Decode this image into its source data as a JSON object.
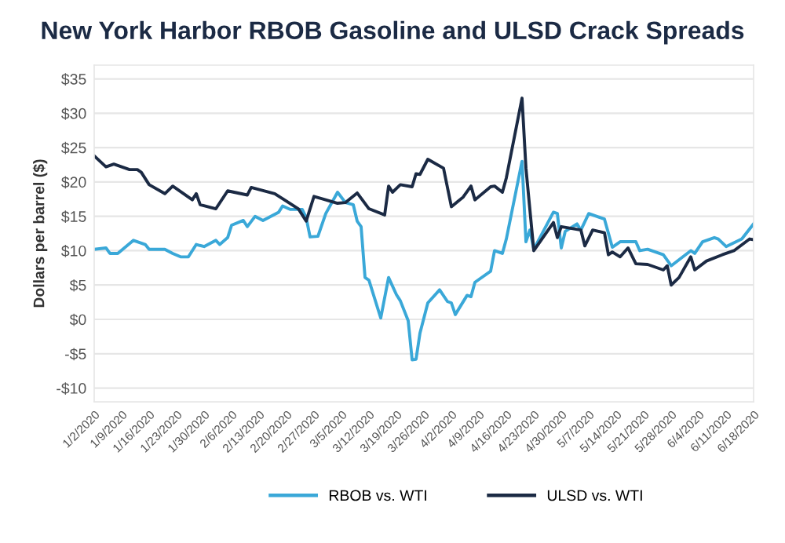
{
  "chart_data": {
    "type": "line",
    "title": "New York Harbor RBOB Gasoline and ULSD Crack Spreads",
    "ylabel": "Dollars per barrel ($)",
    "xlim": [
      "2020-01-02",
      "2020-06-18"
    ],
    "xticks": [
      {
        "value": "2020-01-02",
        "label": "1/2/2020"
      },
      {
        "value": "2020-01-09",
        "label": "1/9/2020"
      },
      {
        "value": "2020-01-16",
        "label": "1/16/2020"
      },
      {
        "value": "2020-01-23",
        "label": "1/23/2020"
      },
      {
        "value": "2020-01-30",
        "label": "1/30/2020"
      },
      {
        "value": "2020-02-06",
        "label": "2/6/2020"
      },
      {
        "value": "2020-02-13",
        "label": "2/13/2020"
      },
      {
        "value": "2020-02-20",
        "label": "2/20/2020"
      },
      {
        "value": "2020-02-27",
        "label": "2/27/2020"
      },
      {
        "value": "2020-03-05",
        "label": "3/5/2020"
      },
      {
        "value": "2020-03-12",
        "label": "3/12/2020"
      },
      {
        "value": "2020-03-19",
        "label": "3/19/2020"
      },
      {
        "value": "2020-03-26",
        "label": "3/26/2020"
      },
      {
        "value": "2020-04-02",
        "label": "4/2/2020"
      },
      {
        "value": "2020-04-09",
        "label": "4/9/2020"
      },
      {
        "value": "2020-04-16",
        "label": "4/16/2020"
      },
      {
        "value": "2020-04-23",
        "label": "4/23/2020"
      },
      {
        "value": "2020-04-30",
        "label": "4/30/2020"
      },
      {
        "value": "2020-05-07",
        "label": "5/7/2020"
      },
      {
        "value": "2020-05-14",
        "label": "5/14/2020"
      },
      {
        "value": "2020-05-21",
        "label": "5/21/2020"
      },
      {
        "value": "2020-05-28",
        "label": "5/28/2020"
      },
      {
        "value": "2020-06-04",
        "label": "6/4/2020"
      },
      {
        "value": "2020-06-11",
        "label": "6/11/2020"
      },
      {
        "value": "2020-06-18",
        "label": "6/18/2020"
      }
    ],
    "ylim": [
      -12,
      37
    ],
    "yticks": [
      {
        "value": -10,
        "label": "-$10"
      },
      {
        "value": -5,
        "label": "-$5"
      },
      {
        "value": 0,
        "label": "$0"
      },
      {
        "value": 5,
        "label": "$5"
      },
      {
        "value": 10,
        "label": "$10"
      },
      {
        "value": 15,
        "label": "$15"
      },
      {
        "value": 20,
        "label": "$20"
      },
      {
        "value": 25,
        "label": "$25"
      },
      {
        "value": 30,
        "label": "$30"
      },
      {
        "value": 35,
        "label": "$35"
      }
    ],
    "grid": "y",
    "legend": "bottom",
    "marker": "none",
    "line_style": "solid",
    "series": [
      {
        "name": "RBOB vs. WTI",
        "color": "#3aa8d8",
        "x": [
          "2020-01-02",
          "2020-01-05",
          "2020-01-06",
          "2020-01-08",
          "2020-01-12",
          "2020-01-15",
          "2020-01-16",
          "2020-01-20",
          "2020-01-22",
          "2020-01-24",
          "2020-01-26",
          "2020-01-28",
          "2020-01-30",
          "2020-02-02",
          "2020-02-03",
          "2020-02-05",
          "2020-02-06",
          "2020-02-09",
          "2020-02-10",
          "2020-02-12",
          "2020-02-14",
          "2020-02-18",
          "2020-02-19",
          "2020-02-21",
          "2020-02-24",
          "2020-02-25",
          "2020-02-26",
          "2020-02-28",
          "2020-03-01",
          "2020-03-04",
          "2020-03-06",
          "2020-03-08",
          "2020-03-09",
          "2020-03-10",
          "2020-03-11",
          "2020-03-12",
          "2020-03-15",
          "2020-03-17",
          "2020-03-19",
          "2020-03-20",
          "2020-03-22",
          "2020-03-23",
          "2020-03-24",
          "2020-03-25",
          "2020-03-27",
          "2020-03-30",
          "2020-04-01",
          "2020-04-02",
          "2020-04-03",
          "2020-04-06",
          "2020-04-07",
          "2020-04-08",
          "2020-04-12",
          "2020-04-13",
          "2020-04-15",
          "2020-04-16",
          "2020-04-20",
          "2020-04-21",
          "2020-04-22",
          "2020-04-23",
          "2020-04-28",
          "2020-04-29",
          "2020-04-30",
          "2020-05-01",
          "2020-05-04",
          "2020-05-05",
          "2020-05-07",
          "2020-05-11",
          "2020-05-13",
          "2020-05-15",
          "2020-05-19",
          "2020-05-20",
          "2020-05-22",
          "2020-05-26",
          "2020-05-28",
          "2020-06-02",
          "2020-06-03",
          "2020-06-05",
          "2020-06-08",
          "2020-06-09",
          "2020-06-11",
          "2020-06-15",
          "2020-06-18"
        ],
        "values": [
          10.2,
          10.4,
          9.6,
          9.6,
          11.5,
          10.9,
          10.2,
          10.2,
          9.6,
          9.1,
          9.1,
          10.9,
          10.6,
          11.5,
          10.9,
          11.9,
          13.7,
          14.4,
          13.5,
          15.0,
          14.4,
          15.6,
          16.5,
          16.0,
          16.0,
          14.8,
          12.0,
          12.1,
          15.4,
          18.5,
          17.0,
          16.7,
          14.3,
          13.5,
          6.1,
          5.7,
          0.2,
          6.1,
          3.6,
          2.7,
          -0.2,
          -5.9,
          -5.8,
          -2.0,
          2.4,
          4.3,
          2.6,
          2.4,
          0.7,
          3.5,
          3.3,
          5.4,
          7.0,
          10.0,
          9.6,
          11.7,
          23.0,
          11.3,
          13.0,
          10.2,
          15.6,
          15.4,
          10.4,
          12.8,
          13.9,
          13.0,
          15.4,
          14.6,
          10.5,
          11.3,
          11.3,
          10.0,
          10.2,
          9.4,
          7.8,
          10.0,
          9.6,
          11.3,
          11.9,
          11.7,
          10.6,
          11.7,
          13.9
        ]
      },
      {
        "name": "ULSD vs. WTI",
        "color": "#1b2a44",
        "x": [
          "2020-01-02",
          "2020-01-05",
          "2020-01-07",
          "2020-01-11",
          "2020-01-13",
          "2020-01-14",
          "2020-01-16",
          "2020-01-20",
          "2020-01-22",
          "2020-01-27",
          "2020-01-28",
          "2020-01-29",
          "2020-02-02",
          "2020-02-05",
          "2020-02-10",
          "2020-02-11",
          "2020-02-17",
          "2020-02-23",
          "2020-02-25",
          "2020-02-27",
          "2020-03-04",
          "2020-03-06",
          "2020-03-09",
          "2020-03-12",
          "2020-03-16",
          "2020-03-17",
          "2020-03-18",
          "2020-03-20",
          "2020-03-23",
          "2020-03-24",
          "2020-03-25",
          "2020-03-27",
          "2020-03-31",
          "2020-04-02",
          "2020-04-05",
          "2020-04-07",
          "2020-04-08",
          "2020-04-12",
          "2020-04-13",
          "2020-04-15",
          "2020-04-16",
          "2020-04-20",
          "2020-04-21",
          "2020-04-23",
          "2020-04-28",
          "2020-04-29",
          "2020-04-30",
          "2020-05-05",
          "2020-05-06",
          "2020-05-08",
          "2020-05-11",
          "2020-05-12",
          "2020-05-13",
          "2020-05-15",
          "2020-05-17",
          "2020-05-19",
          "2020-05-22",
          "2020-05-26",
          "2020-05-27",
          "2020-05-28",
          "2020-05-30",
          "2020-06-02",
          "2020-06-03",
          "2020-06-06",
          "2020-06-10",
          "2020-06-13",
          "2020-06-17",
          "2020-06-18"
        ],
        "values": [
          23.8,
          22.2,
          22.6,
          21.8,
          21.8,
          21.4,
          19.6,
          18.3,
          19.4,
          17.4,
          18.3,
          16.7,
          16.1,
          18.7,
          18.1,
          19.2,
          18.3,
          16.1,
          14.3,
          17.9,
          16.9,
          17.0,
          18.4,
          16.1,
          15.2,
          19.4,
          18.5,
          19.6,
          19.3,
          21.2,
          21.1,
          23.3,
          22.0,
          16.4,
          17.8,
          19.4,
          17.4,
          19.3,
          19.4,
          18.5,
          20.6,
          32.2,
          22.0,
          10.0,
          14.1,
          11.9,
          13.5,
          13.0,
          10.7,
          13.0,
          12.6,
          9.4,
          9.8,
          9.1,
          10.4,
          8.1,
          8.0,
          7.2,
          7.8,
          5.0,
          6.1,
          9.1,
          7.2,
          8.5,
          9.4,
          10.0,
          11.7,
          11.6
        ]
      }
    ]
  }
}
